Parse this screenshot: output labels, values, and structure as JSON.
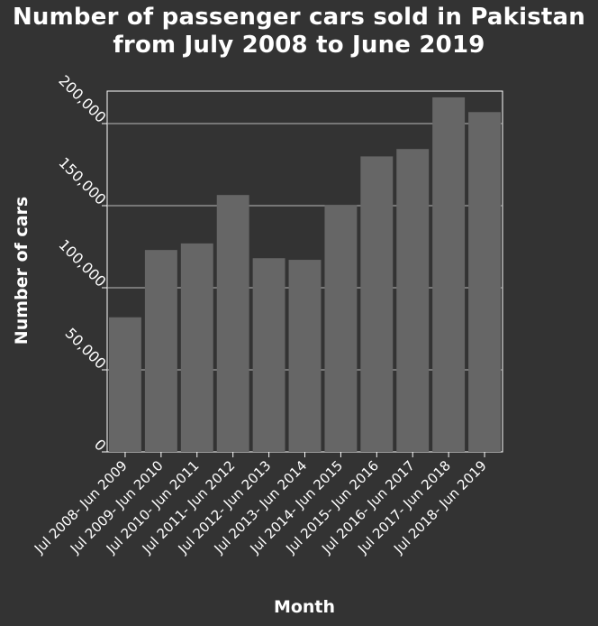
{
  "chart_data": {
    "type": "bar",
    "title_lines": [
      "Number of passenger cars sold in Pakistan",
      "from July 2008 to June 2019"
    ],
    "xlabel": "Month",
    "ylabel": "Number of cars",
    "categories": [
      "Jul 2008- Jun 2009",
      "Jul 2009- Jun 2010",
      "Jul 2010- Jun 2011",
      "Jul 2011- Jun 2012",
      "Jul 2012- Jun 2013",
      "Jul 2013- Jun 2014",
      "Jul 2014- Jun 2015",
      "Jul 2015- Jun 2016",
      "Jul 2016- Jun 2017",
      "Jul 2017- Jun 2018",
      "Jul 2018- Jun 2019"
    ],
    "values": [
      82000,
      123000,
      127000,
      156500,
      118000,
      117000,
      150500,
      180000,
      184500,
      216000,
      207000
    ],
    "ylim": [
      0,
      200000
    ],
    "yticks": [
      0,
      50000,
      100000,
      150000,
      200000
    ],
    "ytick_labels": [
      "0",
      "50,000",
      "100,000",
      "150,000",
      "200,000"
    ],
    "grid": "horizontal",
    "legend": "none",
    "colors": {
      "background": "#333333",
      "bar": "#666666",
      "axis": "#ffffff",
      "grid": "#bbbbbb",
      "text": "#ffffff"
    }
  }
}
